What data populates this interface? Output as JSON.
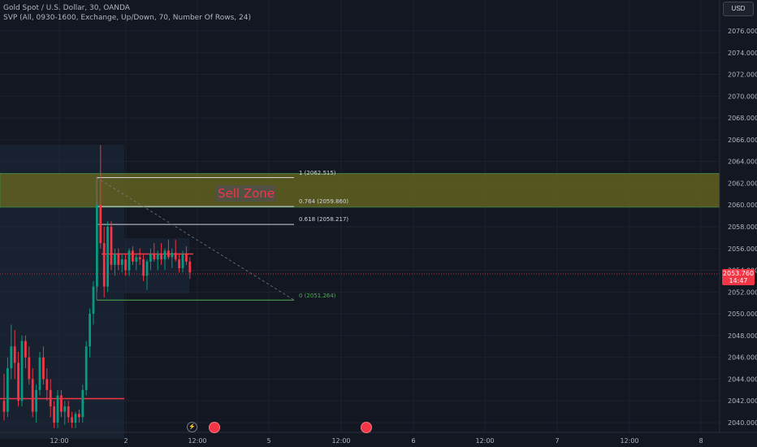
{
  "legend": {
    "title": "Gold Spot / U.S. Dollar, 30, OANDA",
    "indicator": "SVP (All, 0930-1600, Exchange, Up/Down, 70, Number Of Rows, 24)"
  },
  "currency_button": "USD",
  "current_price": {
    "value": "2053.760",
    "countdown": "14:47"
  },
  "sell_zone_label": "Sell Zone",
  "fib_levels": [
    {
      "label": "1 (2062.515)",
      "price": 2062.515
    },
    {
      "label": "0.764 (2059.860)",
      "price": 2059.86
    },
    {
      "label": "0.618 (2058.217)",
      "price": 2058.217
    },
    {
      "label": "0 (2051.264)",
      "price": 2051.264
    }
  ],
  "colors": {
    "background": "#131722",
    "up": "#089981",
    "down": "#f23645",
    "zone_fill": "#6b6a1f",
    "zone_border": "#4caf50",
    "grid": "#1e222d",
    "axis_text": "#b2b5be"
  },
  "icons": [
    "lightning-icon",
    "us-flag-icon",
    "us-flag-icon"
  ],
  "chart_data": {
    "type": "candlestick",
    "ylim": [
      2039.5,
      2078
    ],
    "yticks": [
      "2040.000",
      "2042.000",
      "2044.000",
      "2046.000",
      "2048.000",
      "2050.000",
      "2052.000",
      "2054.000",
      "2056.000",
      "2058.000",
      "2060.000",
      "2062.000",
      "2064.000",
      "2066.000",
      "2068.000",
      "2070.000",
      "2072.000",
      "2074.000",
      "2076.000"
    ],
    "xticks": [
      "12:00",
      "2",
      "12:00",
      "5",
      "12:00",
      "6",
      "12:00",
      "7",
      "12:00",
      "8"
    ],
    "sell_zone": [
      2059.8,
      2062.9
    ],
    "horizontal_lines": [
      2042.2,
      2055.5
    ],
    "candles": [
      [
        2042.0,
        2044.5,
        2040.2,
        2041.0
      ],
      [
        2041.0,
        2046.0,
        2040.5,
        2045.0
      ],
      [
        2045.0,
        2049.0,
        2044.0,
        2047.0
      ],
      [
        2047.0,
        2048.5,
        2044.0,
        2045.5
      ],
      [
        2045.5,
        2046.5,
        2041.5,
        2042.0
      ],
      [
        2042.0,
        2048.0,
        2041.5,
        2047.5
      ],
      [
        2047.5,
        2048.0,
        2045.0,
        2046.0
      ],
      [
        2046.0,
        2047.0,
        2043.5,
        2044.0
      ],
      [
        2044.0,
        2045.0,
        2040.5,
        2041.0
      ],
      [
        2041.0,
        2043.5,
        2040.0,
        2043.0
      ],
      [
        2043.0,
        2046.5,
        2042.5,
        2046.0
      ],
      [
        2046.0,
        2047.0,
        2043.5,
        2044.0
      ],
      [
        2044.0,
        2045.0,
        2042.0,
        2043.0
      ],
      [
        2043.0,
        2044.0,
        2040.5,
        2041.5
      ],
      [
        2041.5,
        2042.0,
        2039.5,
        2040.0
      ],
      [
        2040.0,
        2043.0,
        2039.5,
        2042.5
      ],
      [
        2042.5,
        2043.0,
        2040.5,
        2041.0
      ],
      [
        2041.0,
        2042.0,
        2039.8,
        2041.5
      ],
      [
        2041.5,
        2042.0,
        2040.0,
        2040.5
      ],
      [
        2040.5,
        2041.0,
        2039.5,
        2040.0
      ],
      [
        2040.0,
        2041.0,
        2039.5,
        2040.8
      ],
      [
        2040.8,
        2041.2,
        2040.0,
        2040.5
      ],
      [
        2040.5,
        2043.5,
        2040.0,
        2043.0
      ],
      [
        2043.0,
        2047.5,
        2042.5,
        2047.0
      ],
      [
        2047.0,
        2050.5,
        2046.0,
        2050.0
      ],
      [
        2050.0,
        2053.0,
        2049.0,
        2052.5
      ],
      [
        2052.5,
        2060.5,
        2052.0,
        2060.0
      ],
      [
        2060.0,
        2065.5,
        2056.0,
        2056.5
      ],
      [
        2056.5,
        2058.0,
        2051.5,
        2052.5
      ],
      [
        2052.5,
        2058.5,
        2052.0,
        2058.0
      ],
      [
        2058.0,
        2058.5,
        2054.0,
        2054.5
      ],
      [
        2054.5,
        2056.0,
        2053.5,
        2055.5
      ],
      [
        2055.5,
        2056.0,
        2054.0,
        2054.5
      ],
      [
        2054.5,
        2055.5,
        2053.8,
        2055.0
      ],
      [
        2055.0,
        2055.5,
        2053.5,
        2054.0
      ],
      [
        2054.0,
        2056.0,
        2053.5,
        2055.8
      ],
      [
        2055.8,
        2056.2,
        2054.5,
        2054.8
      ],
      [
        2054.8,
        2055.5,
        2054.0,
        2055.2
      ],
      [
        2055.2,
        2056.0,
        2054.5,
        2055.0
      ],
      [
        2055.0,
        2055.5,
        2053.0,
        2053.5
      ],
      [
        2053.5,
        2055.0,
        2052.2,
        2054.8
      ],
      [
        2054.8,
        2056.0,
        2054.0,
        2055.5
      ],
      [
        2055.5,
        2056.5,
        2054.8,
        2055.0
      ],
      [
        2055.0,
        2055.8,
        2054.0,
        2055.5
      ],
      [
        2055.5,
        2056.5,
        2054.5,
        2055.0
      ],
      [
        2055.0,
        2056.0,
        2054.0,
        2055.8
      ],
      [
        2055.8,
        2056.8,
        2055.0,
        2055.2
      ],
      [
        2055.2,
        2056.0,
        2054.2,
        2055.6
      ],
      [
        2055.6,
        2056.8,
        2054.8,
        2055.0
      ],
      [
        2055.0,
        2055.5,
        2053.8,
        2054.2
      ],
      [
        2054.2,
        2055.8,
        2053.8,
        2055.5
      ],
      [
        2055.5,
        2056.2,
        2054.5,
        2054.8
      ],
      [
        2054.8,
        2055.2,
        2053.2,
        2053.8
      ]
    ]
  }
}
